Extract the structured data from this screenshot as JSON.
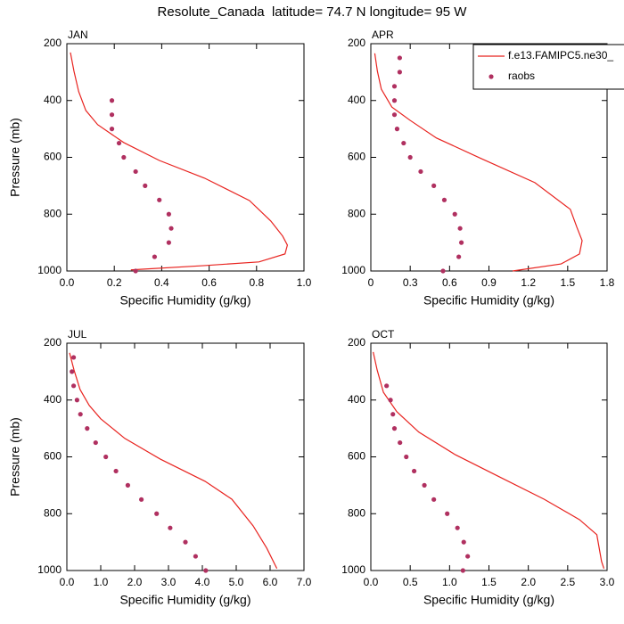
{
  "title": "Resolute_Canada  latitude= 74.7 N longitude= 95 W",
  "chart_data": [
    {
      "type": "line",
      "title": "JAN",
      "xlabel": "Specific Humidity (g/kg)",
      "ylabel": "Pressure (mb)",
      "xlim": [
        0,
        1.0
      ],
      "xticks": [
        {
          "value": 0,
          "label": "0.0"
        },
        0.2,
        0.4,
        0.6,
        0.8,
        {
          "value": 1.0,
          "label": "1.0"
        }
      ],
      "ylim": [
        1000,
        200
      ],
      "yticks": [
        200,
        400,
        600,
        800,
        1000
      ],
      "series": [
        {
          "mode": "line",
          "color": "#e8231f",
          "x": [
            0.015,
            0.03,
            0.05,
            0.08,
            0.13,
            0.24,
            0.39,
            0.58,
            0.77,
            0.86,
            0.91,
            0.93,
            0.92,
            0.81,
            0.58,
            0.27
          ],
          "y": [
            231,
            297,
            369,
            435,
            485,
            548,
            611,
            673,
            752,
            824,
            877,
            909,
            940,
            968,
            981,
            996
          ]
        },
        {
          "mode": "markers",
          "color": "#b03060",
          "x": [
            0.19,
            0.19,
            0.19,
            0.22,
            0.24,
            0.29,
            0.33,
            0.39,
            0.43,
            0.44,
            0.43,
            0.37,
            0.29
          ],
          "y": [
            400,
            450,
            500,
            550,
            600,
            650,
            700,
            750,
            800,
            850,
            900,
            950,
            1000
          ]
        }
      ]
    },
    {
      "type": "line",
      "title": "APR",
      "xlabel": "Specific Humidity (g/kg)",
      "legend": "top-right",
      "xlim": [
        0,
        1.8
      ],
      "xticks": [
        0,
        0.3,
        0.6,
        0.9,
        1.2,
        1.5,
        1.8
      ],
      "ylim": [
        1000,
        200
      ],
      "yticks": [
        200,
        400,
        600,
        800,
        1000
      ],
      "series": [
        {
          "name": "f.e13.FAMIPC5.ne30_",
          "mode": "line",
          "color": "#e8231f",
          "x": [
            0.03,
            0.05,
            0.08,
            0.16,
            0.3,
            0.5,
            0.84,
            1.25,
            1.52,
            1.57,
            1.61,
            1.59,
            1.45,
            1.08
          ],
          "y": [
            234,
            297,
            360,
            423,
            470,
            532,
            604,
            689,
            783,
            846,
            893,
            940,
            975,
            1000
          ]
        },
        {
          "name": "raobs",
          "mode": "markers",
          "color": "#b03060",
          "x": [
            0.22,
            0.22,
            0.18,
            0.18,
            0.18,
            0.2,
            0.25,
            0.3,
            0.38,
            0.48,
            0.56,
            0.64,
            0.68,
            0.69,
            0.67,
            0.55
          ],
          "y": [
            250,
            300,
            350,
            400,
            450,
            500,
            550,
            600,
            650,
            700,
            750,
            800,
            850,
            900,
            950,
            1000
          ]
        }
      ]
    },
    {
      "type": "line",
      "title": "JUL",
      "xlabel": "Specific Humidity (g/kg)",
      "ylabel": "Pressure (mb)",
      "xlim": [
        0,
        7
      ],
      "xticks": [
        {
          "value": 0,
          "label": "0.0"
        },
        {
          "value": 1,
          "label": "1.0"
        },
        {
          "value": 2,
          "label": "2.0"
        },
        {
          "value": 3,
          "label": "3.0"
        },
        {
          "value": 4,
          "label": "4.0"
        },
        {
          "value": 5,
          "label": "5.0"
        },
        {
          "value": 6,
          "label": "6.0"
        },
        {
          "value": 7,
          "label": "7.0"
        }
      ],
      "ylim": [
        1000,
        200
      ],
      "yticks": [
        200,
        400,
        600,
        800,
        1000
      ],
      "series": [
        {
          "mode": "line",
          "color": "#e8231f",
          "x": [
            0.08,
            0.21,
            0.39,
            0.66,
            1.0,
            1.71,
            2.76,
            4.08,
            4.87,
            5.5,
            5.9,
            6.2
          ],
          "y": [
            234,
            294,
            363,
            419,
            466,
            535,
            608,
            686,
            749,
            843,
            921,
            993
          ]
        },
        {
          "mode": "markers",
          "color": "#b03060",
          "x": [
            0.2,
            0.15,
            0.2,
            0.3,
            0.4,
            0.6,
            0.85,
            1.15,
            1.45,
            1.8,
            2.2,
            2.65,
            3.05,
            3.5,
            3.8,
            4.1
          ],
          "y": [
            250,
            300,
            350,
            400,
            450,
            500,
            550,
            600,
            650,
            700,
            750,
            800,
            850,
            900,
            950,
            1000
          ]
        }
      ]
    },
    {
      "type": "line",
      "title": "OCT",
      "xlabel": "Specific Humidity (g/kg)",
      "xlim": [
        0,
        3.0
      ],
      "xticks": [
        {
          "value": 0,
          "label": "0.0"
        },
        0.5,
        {
          "value": 1,
          "label": "1.0"
        },
        1.5,
        {
          "value": 2,
          "label": "2.0"
        },
        2.5,
        {
          "value": 3,
          "label": "3.0"
        }
      ],
      "ylim": [
        1000,
        200
      ],
      "yticks": [
        200,
        400,
        600,
        800,
        1000
      ],
      "series": [
        {
          "mode": "line",
          "color": "#e8231f",
          "x": [
            0.03,
            0.08,
            0.16,
            0.33,
            0.61,
            1.07,
            1.63,
            2.2,
            2.65,
            2.87,
            2.93,
            2.96
          ],
          "y": [
            231,
            294,
            373,
            441,
            513,
            592,
            670,
            749,
            821,
            874,
            968,
            993
          ]
        },
        {
          "mode": "markers",
          "color": "#b03060",
          "x": [
            0.2,
            0.25,
            0.28,
            0.3,
            0.37,
            0.45,
            0.55,
            0.68,
            0.8,
            0.97,
            1.1,
            1.18,
            1.23,
            1.17
          ],
          "y": [
            350,
            400,
            450,
            500,
            550,
            600,
            650,
            700,
            750,
            800,
            850,
            900,
            950,
            1000
          ]
        }
      ]
    }
  ]
}
